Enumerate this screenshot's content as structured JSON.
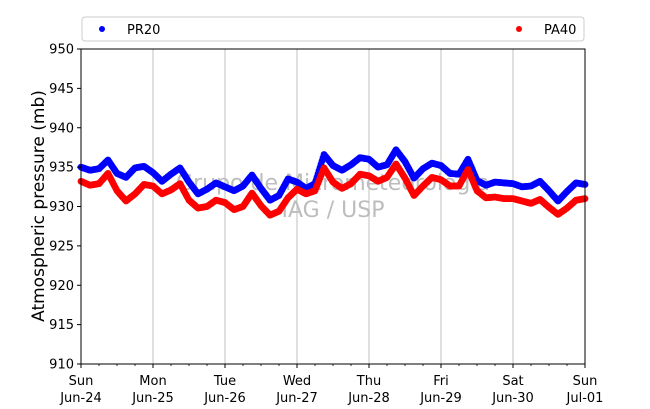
{
  "chart_data": {
    "type": "scatter",
    "title": "",
    "xlabel": "",
    "ylabel": "Atmospheric pressure (mb)",
    "ylim": [
      910,
      950
    ],
    "yticks": [
      910,
      915,
      920,
      925,
      930,
      935,
      940,
      945,
      950
    ],
    "xlim": [
      "2024-06-24",
      "2024-07-01"
    ],
    "xtick_labels": [
      {
        "day": "Sun",
        "date": "Jun-24"
      },
      {
        "day": "Mon",
        "date": "Jun-25"
      },
      {
        "day": "Tue",
        "date": "Jun-26"
      },
      {
        "day": "Wed",
        "date": "Jun-27"
      },
      {
        "day": "Thu",
        "date": "Jun-28"
      },
      {
        "day": "Fri",
        "date": "Jun-29"
      },
      {
        "day": "Sat",
        "date": "Jun-30"
      },
      {
        "day": "Sun",
        "date": "Jul-01"
      }
    ],
    "grid": "vertical",
    "legend_placement": "top",
    "x": [
      "2024-06-24 00:00",
      "2024-06-24 03:00",
      "2024-06-24 06:00",
      "2024-06-24 09:00",
      "2024-06-24 12:00",
      "2024-06-24 15:00",
      "2024-06-24 18:00",
      "2024-06-24 21:00",
      "2024-06-25 00:00",
      "2024-06-25 03:00",
      "2024-06-25 06:00",
      "2024-06-25 09:00",
      "2024-06-25 12:00",
      "2024-06-25 15:00",
      "2024-06-25 18:00",
      "2024-06-25 21:00",
      "2024-06-26 00:00",
      "2024-06-26 03:00",
      "2024-06-26 06:00",
      "2024-06-26 09:00",
      "2024-06-26 12:00",
      "2024-06-26 15:00",
      "2024-06-26 18:00",
      "2024-06-26 21:00",
      "2024-06-27 00:00",
      "2024-06-27 03:00",
      "2024-06-27 06:00",
      "2024-06-27 09:00",
      "2024-06-27 12:00",
      "2024-06-27 15:00",
      "2024-06-27 18:00",
      "2024-06-27 21:00",
      "2024-06-28 00:00",
      "2024-06-28 03:00",
      "2024-06-28 06:00",
      "2024-06-28 09:00",
      "2024-06-28 12:00",
      "2024-06-28 15:00",
      "2024-06-28 18:00",
      "2024-06-28 21:00",
      "2024-06-29 00:00",
      "2024-06-29 03:00",
      "2024-06-29 06:00",
      "2024-06-29 09:00",
      "2024-06-29 12:00",
      "2024-06-29 15:00",
      "2024-06-29 18:00",
      "2024-06-29 21:00",
      "2024-06-30 00:00",
      "2024-06-30 03:00",
      "2024-06-30 06:00",
      "2024-06-30 09:00",
      "2024-06-30 12:00",
      "2024-06-30 15:00",
      "2024-06-30 18:00",
      "2024-06-30 21:00",
      "2024-07-01 00:00"
    ],
    "series": [
      {
        "name": "PR20",
        "color": "#0000ff",
        "values": [
          935.0,
          934.6,
          934.8,
          935.9,
          934.2,
          933.7,
          934.9,
          935.1,
          934.3,
          933.2,
          934.1,
          934.9,
          933.1,
          931.6,
          932.2,
          933.0,
          932.5,
          932.0,
          932.6,
          934.0,
          932.3,
          930.8,
          931.4,
          933.5,
          933.1,
          932.3,
          932.9,
          936.6,
          935.2,
          934.6,
          935.3,
          936.2,
          936.0,
          935.0,
          935.3,
          937.2,
          935.7,
          933.6,
          934.8,
          935.5,
          935.2,
          934.2,
          934.1,
          936.0,
          933.3,
          932.7,
          933.1,
          933.0,
          932.9,
          932.5,
          932.6,
          933.2,
          932.0,
          930.7,
          931.9,
          933.0,
          932.8
        ]
      },
      {
        "name": "PA40",
        "color": "#ff0000",
        "values": [
          933.2,
          932.7,
          932.9,
          934.2,
          932.0,
          930.7,
          931.6,
          932.8,
          932.6,
          931.6,
          932.1,
          932.9,
          930.8,
          929.8,
          930.0,
          930.8,
          930.5,
          929.6,
          930.0,
          931.7,
          930.1,
          928.9,
          929.4,
          931.1,
          932.2,
          931.6,
          932.0,
          934.9,
          933.1,
          932.3,
          932.9,
          934.1,
          933.9,
          933.2,
          933.7,
          935.4,
          933.6,
          931.4,
          932.6,
          933.7,
          933.4,
          932.6,
          932.6,
          934.7,
          932.0,
          931.1,
          931.2,
          931.0,
          931.0,
          930.7,
          930.4,
          930.9,
          929.9,
          929.0,
          929.8,
          930.8,
          931.0
        ]
      }
    ]
  },
  "legend": {
    "items": [
      {
        "label": "PR20",
        "color": "#0000ff"
      },
      {
        "label": "PA40",
        "color": "#ff0000"
      }
    ]
  },
  "watermark": {
    "line1": "Grupo de Micrometeorologia",
    "line2": "IAG / USP",
    "color": "#bdbdbd"
  }
}
